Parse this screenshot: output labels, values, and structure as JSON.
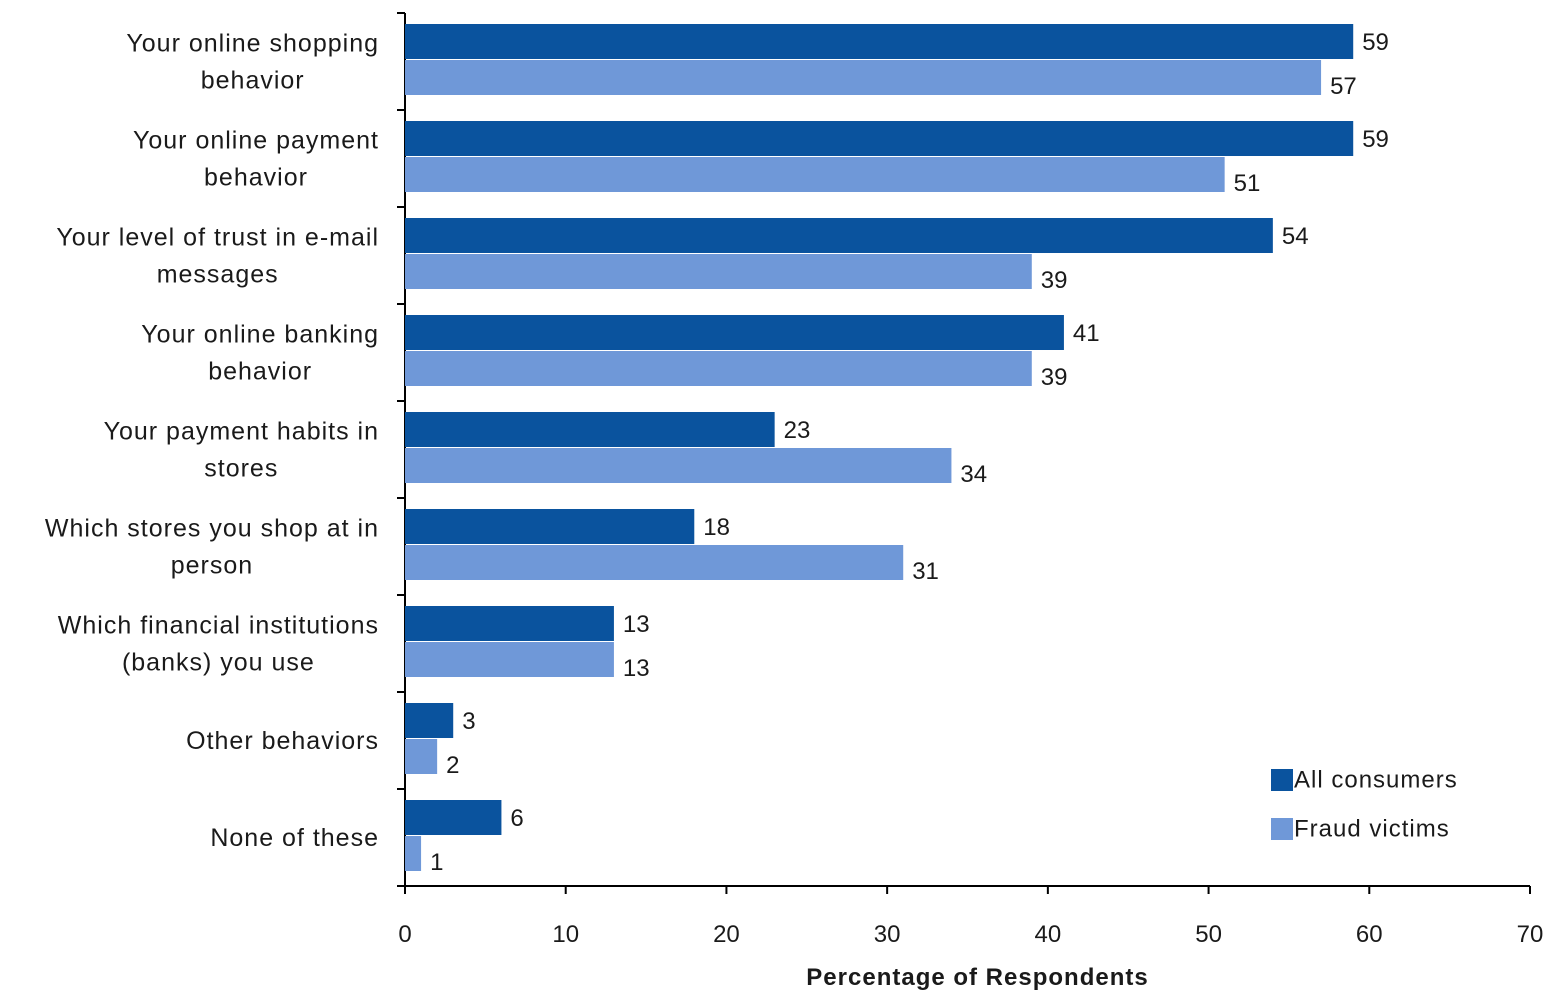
{
  "chart_data": {
    "type": "bar",
    "orientation": "horizontal",
    "categories": [
      [
        "Your online shopping",
        "behavior"
      ],
      [
        "Your online payment",
        "behavior"
      ],
      [
        "Your level of trust in e-mail",
        "messages"
      ],
      [
        "Your online banking",
        "behavior"
      ],
      [
        "Your payment habits in",
        "stores"
      ],
      [
        "Which stores you shop at in",
        "person"
      ],
      [
        "Which financial institutions",
        "(banks) you use"
      ],
      [
        "Other behaviors"
      ],
      [
        "None of these"
      ]
    ],
    "series": [
      {
        "name": "All consumers",
        "color": "#0a539e",
        "values": [
          59,
          59,
          54,
          41,
          23,
          18,
          13,
          3,
          6
        ]
      },
      {
        "name": "Fraud victims",
        "color": "#6f98d8",
        "values": [
          57,
          51,
          39,
          39,
          34,
          31,
          13,
          2,
          1
        ]
      }
    ],
    "xlabel": "Percentage of Respondents",
    "xlim": [
      0,
      70
    ],
    "xticks": [
      "0",
      "10",
      "20",
      "30",
      "40",
      "50",
      "60",
      "70"
    ],
    "grid": false,
    "legend": "bottom-right"
  }
}
